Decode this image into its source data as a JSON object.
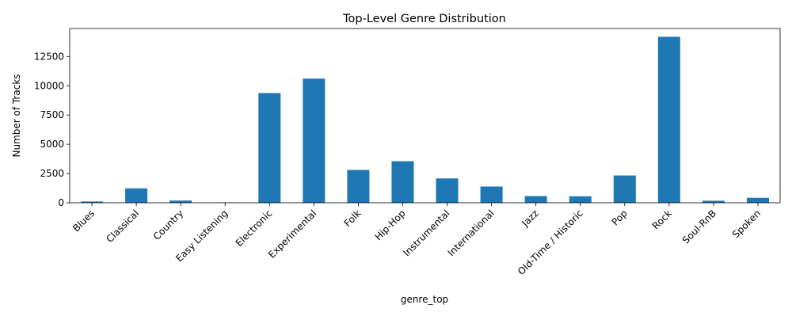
{
  "chart_data": {
    "type": "bar",
    "title": "Top-Level Genre Distribution",
    "xlabel": "genre_top",
    "ylabel": "Number of Tracks",
    "categories": [
      "Blues",
      "Classical",
      "Country",
      "Easy Listening",
      "Electronic",
      "Experimental",
      "Folk",
      "Hip-Hop",
      "Instrumental",
      "International",
      "Jazz",
      "Old-Time / Historic",
      "Pop",
      "Rock",
      "Soul-RnB",
      "Spoken"
    ],
    "values": [
      110,
      1230,
      190,
      24,
      9372,
      10608,
      2803,
      3552,
      2079,
      1389,
      571,
      554,
      2332,
      14182,
      175,
      423
    ],
    "ylim": [
      0,
      14890
    ],
    "yticks": [
      0,
      2500,
      5000,
      7500,
      10000,
      12500
    ],
    "bar_color": "#1f77b4",
    "grid": false,
    "legend": "none"
  }
}
